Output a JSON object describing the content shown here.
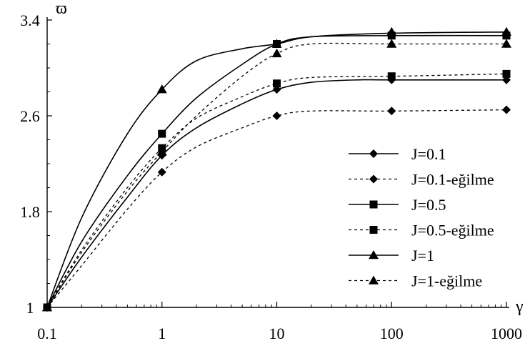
{
  "chart_data": {
    "type": "line",
    "title": "",
    "xlabel": "γ",
    "ylabel": "ϖ",
    "x_scale": "log",
    "xlim": [
      0.1,
      1000
    ],
    "ylim": [
      1,
      3.4
    ],
    "x_ticks": [
      "0.1",
      "1",
      "10",
      "100",
      "1000"
    ],
    "y_ticks": [
      "1",
      "1.8",
      "2.6",
      "3.4"
    ],
    "grid": false,
    "legend_position": "bottom-right",
    "x": [
      0.1,
      1,
      10,
      100,
      1000
    ],
    "series": [
      {
        "name": "J=0.1",
        "dash": "solid",
        "marker": "diamond",
        "values": [
          1.0,
          2.27,
          2.82,
          2.9,
          2.9
        ],
        "curve": [
          [
            0.1,
            1.0
          ],
          [
            0.2,
            1.42
          ],
          [
            0.5,
            1.92
          ],
          [
            1,
            2.27
          ],
          [
            2,
            2.5
          ],
          [
            5,
            2.7
          ],
          [
            10,
            2.82
          ],
          [
            20,
            2.88
          ],
          [
            50,
            2.9
          ],
          [
            100,
            2.9
          ],
          [
            1000,
            2.9
          ]
        ]
      },
      {
        "name": "J=0.1-eğilme",
        "dash": "dashed",
        "marker": "diamond",
        "values": [
          1.0,
          2.13,
          2.6,
          2.64,
          2.65
        ],
        "curve": [
          [
            0.1,
            1.0
          ],
          [
            0.2,
            1.35
          ],
          [
            0.5,
            1.82
          ],
          [
            1,
            2.13
          ],
          [
            2,
            2.34
          ],
          [
            5,
            2.5
          ],
          [
            10,
            2.6
          ],
          [
            20,
            2.64
          ],
          [
            100,
            2.64
          ],
          [
            1000,
            2.65
          ]
        ]
      },
      {
        "name": "J=0.5",
        "dash": "solid",
        "marker": "square",
        "values": [
          1.0,
          2.45,
          3.2,
          3.27,
          3.27
        ],
        "curve": [
          [
            0.1,
            1.0
          ],
          [
            0.2,
            1.55
          ],
          [
            0.5,
            2.1
          ],
          [
            1,
            2.45
          ],
          [
            2,
            2.75
          ],
          [
            5,
            3.03
          ],
          [
            10,
            3.2
          ],
          [
            20,
            3.26
          ],
          [
            100,
            3.27
          ],
          [
            1000,
            3.27
          ]
        ]
      },
      {
        "name": "J=0.5-eğilme",
        "dash": "dashed",
        "marker": "square",
        "values": [
          1.0,
          2.33,
          2.87,
          2.93,
          2.95
        ],
        "curve": [
          [
            0.1,
            1.0
          ],
          [
            0.2,
            1.48
          ],
          [
            0.5,
            2.0
          ],
          [
            1,
            2.33
          ],
          [
            2,
            2.58
          ],
          [
            5,
            2.76
          ],
          [
            10,
            2.87
          ],
          [
            20,
            2.92
          ],
          [
            100,
            2.93
          ],
          [
            1000,
            2.95
          ]
        ]
      },
      {
        "name": "J=1",
        "dash": "solid",
        "marker": "triangle",
        "values": [
          1.0,
          2.82,
          3.2,
          3.3,
          3.3
        ],
        "curve": [
          [
            0.1,
            1.0
          ],
          [
            0.2,
            1.75
          ],
          [
            0.5,
            2.45
          ],
          [
            1,
            2.82
          ],
          [
            2,
            3.06
          ],
          [
            5,
            3.16
          ],
          [
            10,
            3.2
          ],
          [
            20,
            3.26
          ],
          [
            100,
            3.29
          ],
          [
            1000,
            3.3
          ]
        ]
      },
      {
        "name": "J=1-eğilme",
        "dash": "dashed",
        "marker": "triangle",
        "values": [
          1.0,
          2.3,
          3.12,
          3.2,
          3.2
        ],
        "curve": [
          [
            0.1,
            1.0
          ],
          [
            0.2,
            1.46
          ],
          [
            0.5,
            1.97
          ],
          [
            1,
            2.3
          ],
          [
            2,
            2.6
          ],
          [
            5,
            2.93
          ],
          [
            10,
            3.12
          ],
          [
            20,
            3.2
          ],
          [
            100,
            3.2
          ],
          [
            1000,
            3.2
          ]
        ]
      }
    ]
  }
}
